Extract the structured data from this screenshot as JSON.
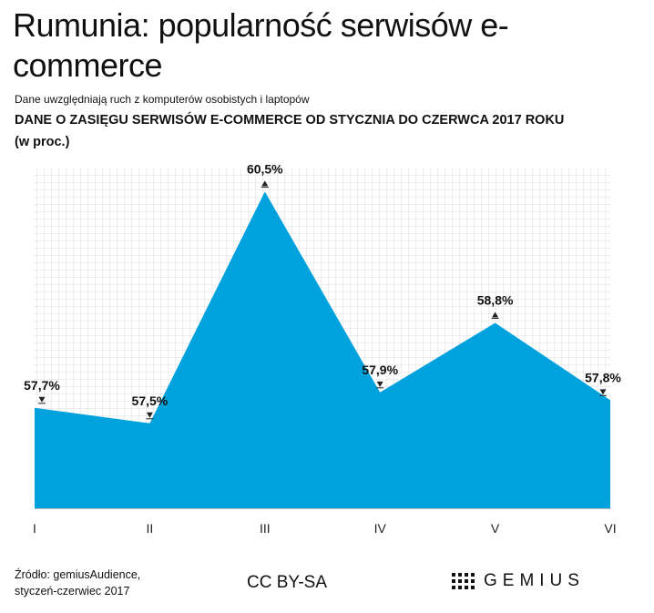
{
  "title": "Rumunia: popularność serwisów e-commerce",
  "note": "Dane uwzględniają ruch z komputerów osobistych i laptopów",
  "subtitle": "DANE O ZASIĘGU SERWISÓW E-COMMERCE OD STYCZNIA DO CZERWCA 2017 ROKU",
  "subtitle2": "(w proc.)",
  "chart_data": {
    "type": "area",
    "categories": [
      "I",
      "II",
      "III",
      "IV",
      "V",
      "VI"
    ],
    "values": [
      57.7,
      57.5,
      60.5,
      57.9,
      58.8,
      57.8
    ],
    "value_labels": [
      "57,7%",
      "57,5%",
      "60,5%",
      "57,9%",
      "58,8%",
      "57,8%"
    ],
    "trend": [
      "down",
      "down",
      "up",
      "down",
      "up",
      "down"
    ],
    "ylim": [
      56.4,
      60.8
    ],
    "grid": true,
    "color": "#00a2dd",
    "xlabel": "",
    "ylabel": ""
  },
  "footer": {
    "source_line1": "Źródło: gemiusAudience,",
    "source_line2": "styczeń-czerwiec 2017",
    "license": "CC BY-SA",
    "brand": "GEMIUS"
  }
}
